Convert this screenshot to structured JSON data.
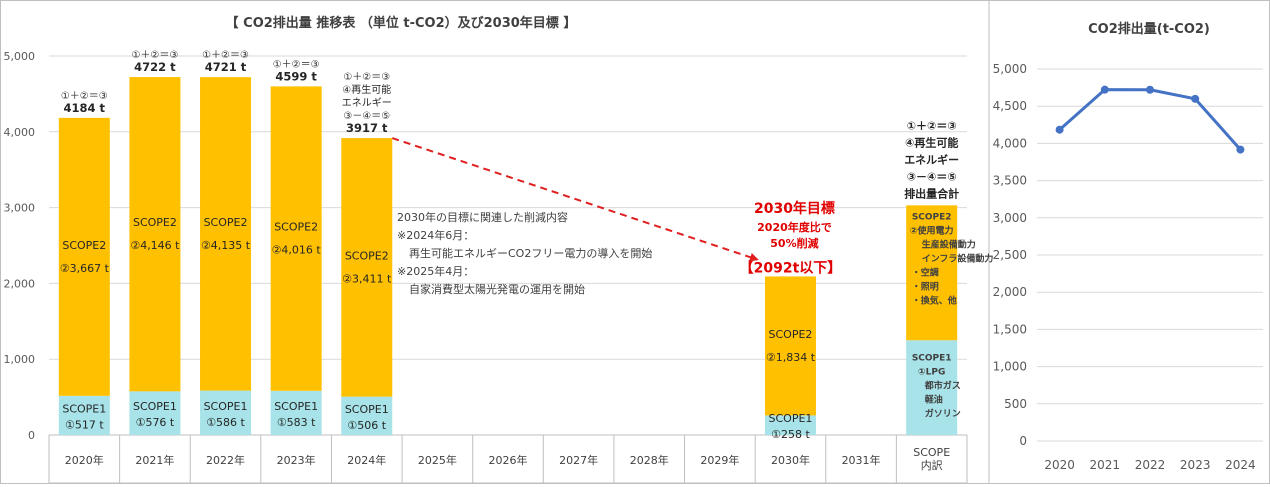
{
  "chart_data": [
    {
      "type": "bar",
      "title": "【 CO2排出量 推移表 （単位 t-CO2）及び2030年目標 】",
      "stacked": true,
      "ylim": [
        0,
        5000
      ],
      "y_ticks": [
        "0",
        "1,000",
        "2,000",
        "3,000",
        "4,000",
        "5,000"
      ],
      "grid": true,
      "categories": [
        "2020年",
        "2021年",
        "2022年",
        "2023年",
        "2024年",
        "2025年",
        "2026年",
        "2027年",
        "2028年",
        "2029年",
        "2030年",
        "2031年",
        "SCOPE内訳"
      ],
      "category_lines": [
        [
          "2020年"
        ],
        [
          "2021年"
        ],
        [
          "2022年"
        ],
        [
          "2023年"
        ],
        [
          "2024年"
        ],
        [
          "2025年"
        ],
        [
          "2026年"
        ],
        [
          "2027年"
        ],
        [
          "2028年"
        ],
        [
          "2029年"
        ],
        [
          "2030年"
        ],
        [
          "2031年"
        ],
        [
          "SCOPE",
          "内訳"
        ]
      ],
      "colors": {
        "scope1": "#a7e3e8",
        "scope2": "#ffc000",
        "arrow": "#e02020",
        "target_text": "#e00000"
      },
      "series": [
        {
          "name": "SCOPE1",
          "values": [
            517,
            576,
            586,
            583,
            506,
            null,
            null,
            null,
            null,
            null,
            258,
            null,
            1250
          ]
        },
        {
          "name": "SCOPE2",
          "values": [
            3667,
            4146,
            4135,
            4016,
            3411,
            null,
            null,
            null,
            null,
            null,
            1834,
            null,
            1780
          ]
        }
      ],
      "bar_labels": [
        {
          "index": 0,
          "scope1": [
            "SCOPE1",
            "①517 t"
          ],
          "scope2": [
            "SCOPE2",
            "②3,667 t"
          ]
        },
        {
          "index": 1,
          "scope1": [
            "SCOPE1",
            "①576 t"
          ],
          "scope2": [
            "SCOPE2",
            "②4,146 t"
          ]
        },
        {
          "index": 2,
          "scope1": [
            "SCOPE1",
            "①586 t"
          ],
          "scope2": [
            "SCOPE2",
            "②4,135 t"
          ]
        },
        {
          "index": 3,
          "scope1": [
            "SCOPE1",
            "①583 t"
          ],
          "scope2": [
            "SCOPE2",
            "②4,016 t"
          ]
        },
        {
          "index": 4,
          "scope1": [
            "SCOPE1",
            "①506 t"
          ],
          "scope2": [
            "SCOPE2",
            "②3,411 t"
          ]
        },
        {
          "index": 10,
          "scope1": [
            "SCOPE1",
            "①258 t"
          ],
          "scope2": [
            "SCOPE2",
            "②1,834 t"
          ]
        }
      ],
      "totals": [
        {
          "index": 0,
          "lines": [
            "①＋②＝③",
            "4184 t"
          ]
        },
        {
          "index": 1,
          "lines": [
            "①＋②＝③",
            "4722 t"
          ]
        },
        {
          "index": 2,
          "lines": [
            "①＋②＝③",
            "4721 t"
          ]
        },
        {
          "index": 3,
          "lines": [
            "①＋②＝③",
            "4599 t"
          ]
        },
        {
          "index": 4,
          "lines": [
            "①＋②＝③",
            "④再生可能",
            "エネルギー",
            "③－④＝⑤",
            "3917 t"
          ]
        }
      ],
      "target": {
        "lines": [
          "2030年目標",
          "2020年度比で",
          "50%削減",
          "【2092t以下】"
        ]
      },
      "annotation": [
        "2030年の目標に関連した削減内容",
        "※2024年6月：",
        "再生可能エネルギーCO2フリー電力の導入を開始",
        "※2025年4月：",
        "自家消費型太陽光発電の運用を開始"
      ],
      "breakdown": {
        "top_lines": [
          "①＋②＝③",
          "④再生可能",
          "エネルギー",
          "③－④＝⑤",
          "排出量合計"
        ],
        "scope2_lines": [
          "SCOPE2",
          "②使用電力",
          "生産設備動力",
          "インフラ設備動力",
          "・空調",
          "・照明",
          "・換気、他"
        ],
        "scope1_lines": [
          "SCOPE1",
          "①LPG",
          "都市ガス",
          "軽油",
          "ガソリン"
        ]
      }
    },
    {
      "type": "line",
      "title": "CO2排出量(t-CO2)",
      "x": [
        "2020",
        "2021",
        "2022",
        "2023",
        "2024"
      ],
      "values": [
        4184,
        4722,
        4721,
        4599,
        3917
      ],
      "ylim": [
        0,
        5000
      ],
      "y_ticks": [
        "0",
        "500",
        "1,000",
        "1,500",
        "2,000",
        "2,500",
        "3,000",
        "3,500",
        "4,000",
        "4,500",
        "5,000"
      ],
      "grid": true,
      "color": "#4472c4"
    }
  ]
}
